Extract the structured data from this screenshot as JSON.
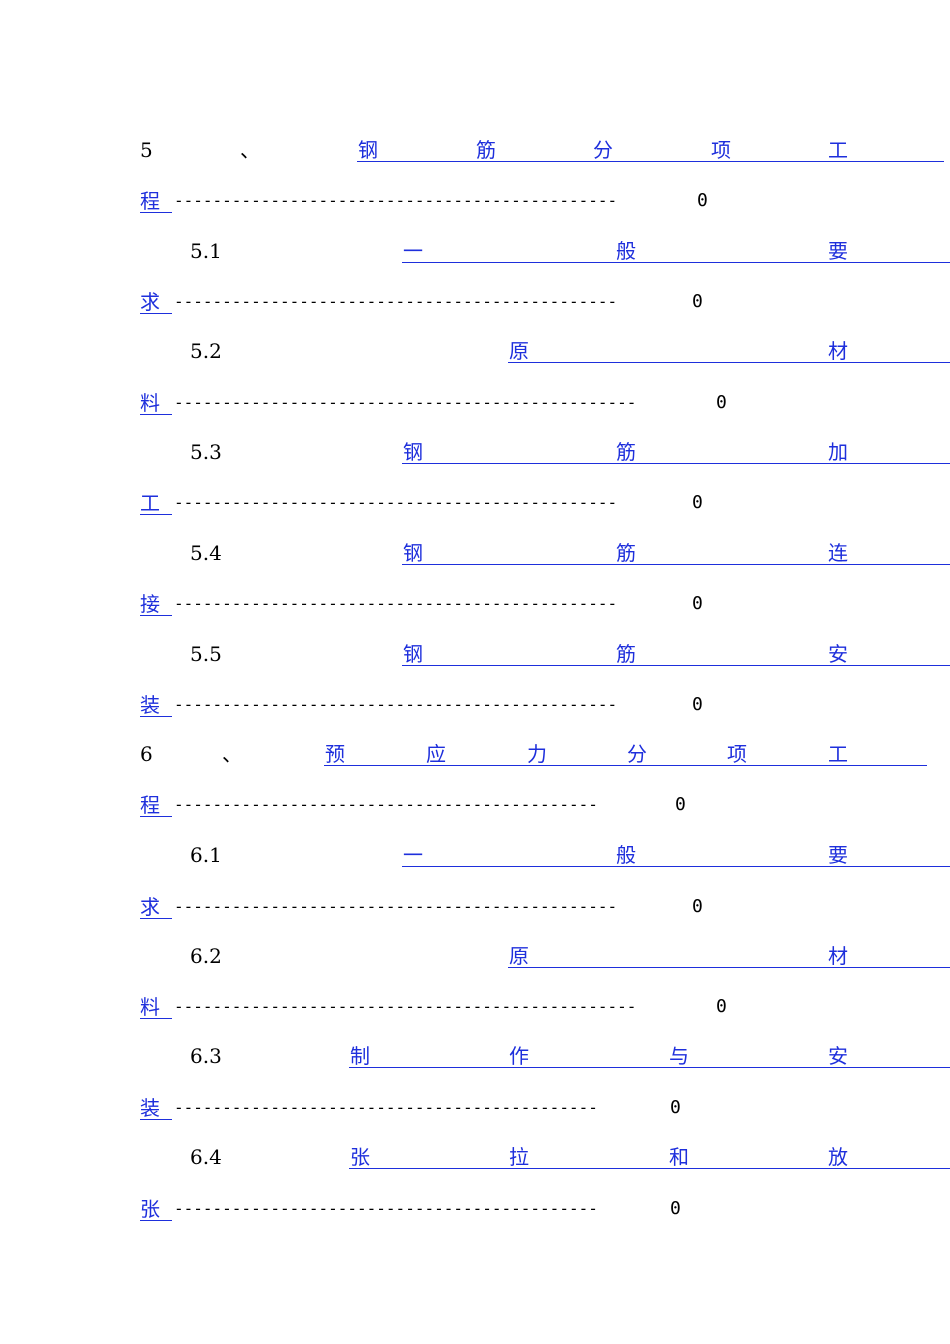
{
  "toc": [
    {
      "num": "5",
      "sep": "、",
      "chars": [
        "钢",
        "筋",
        "分",
        "项",
        "工"
      ],
      "last": "程",
      "dots": "----------------------------------------------",
      "page": "0"
    },
    {
      "num": "5.1",
      "chars": [
        "一",
        "般",
        "要"
      ],
      "last": "求",
      "dots": "----------------------------------------------",
      "page": "0"
    },
    {
      "num": "5.2",
      "chars": [
        "原",
        "材"
      ],
      "last": "料",
      "dots": "------------------------------------------------",
      "page": "0"
    },
    {
      "num": "5.3",
      "chars": [
        "钢",
        "筋",
        "加"
      ],
      "last": "工",
      "dots": "----------------------------------------------",
      "page": "0"
    },
    {
      "num": "5.4",
      "chars": [
        "钢",
        "筋",
        "连"
      ],
      "last": "接",
      "dots": "----------------------------------------------",
      "page": "0"
    },
    {
      "num": "5.5",
      "chars": [
        "钢",
        "筋",
        "安"
      ],
      "last": "装",
      "dots": "----------------------------------------------",
      "page": "0"
    },
    {
      "num": "6",
      "sep": "、",
      "chars": [
        "预",
        "应",
        "力",
        "分",
        "项",
        "工"
      ],
      "last": "程",
      "dots": "--------------------------------------------",
      "page": "0"
    },
    {
      "num": "6.1",
      "chars": [
        "一",
        "般",
        "要"
      ],
      "last": "求",
      "dots": "----------------------------------------------",
      "page": "0"
    },
    {
      "num": "6.2",
      "chars": [
        "原",
        "材"
      ],
      "last": "料",
      "dots": "------------------------------------------------",
      "page": "0"
    },
    {
      "num": "6.3",
      "chars": [
        "制",
        "作",
        "与",
        "安"
      ],
      "last": "装",
      "dots": "--------------------------------------------",
      "page": "0"
    },
    {
      "num": "6.4",
      "chars": [
        "张",
        "拉",
        "和",
        "放"
      ],
      "last": "张",
      "dots": "--------------------------------------------",
      "page": "0"
    }
  ]
}
